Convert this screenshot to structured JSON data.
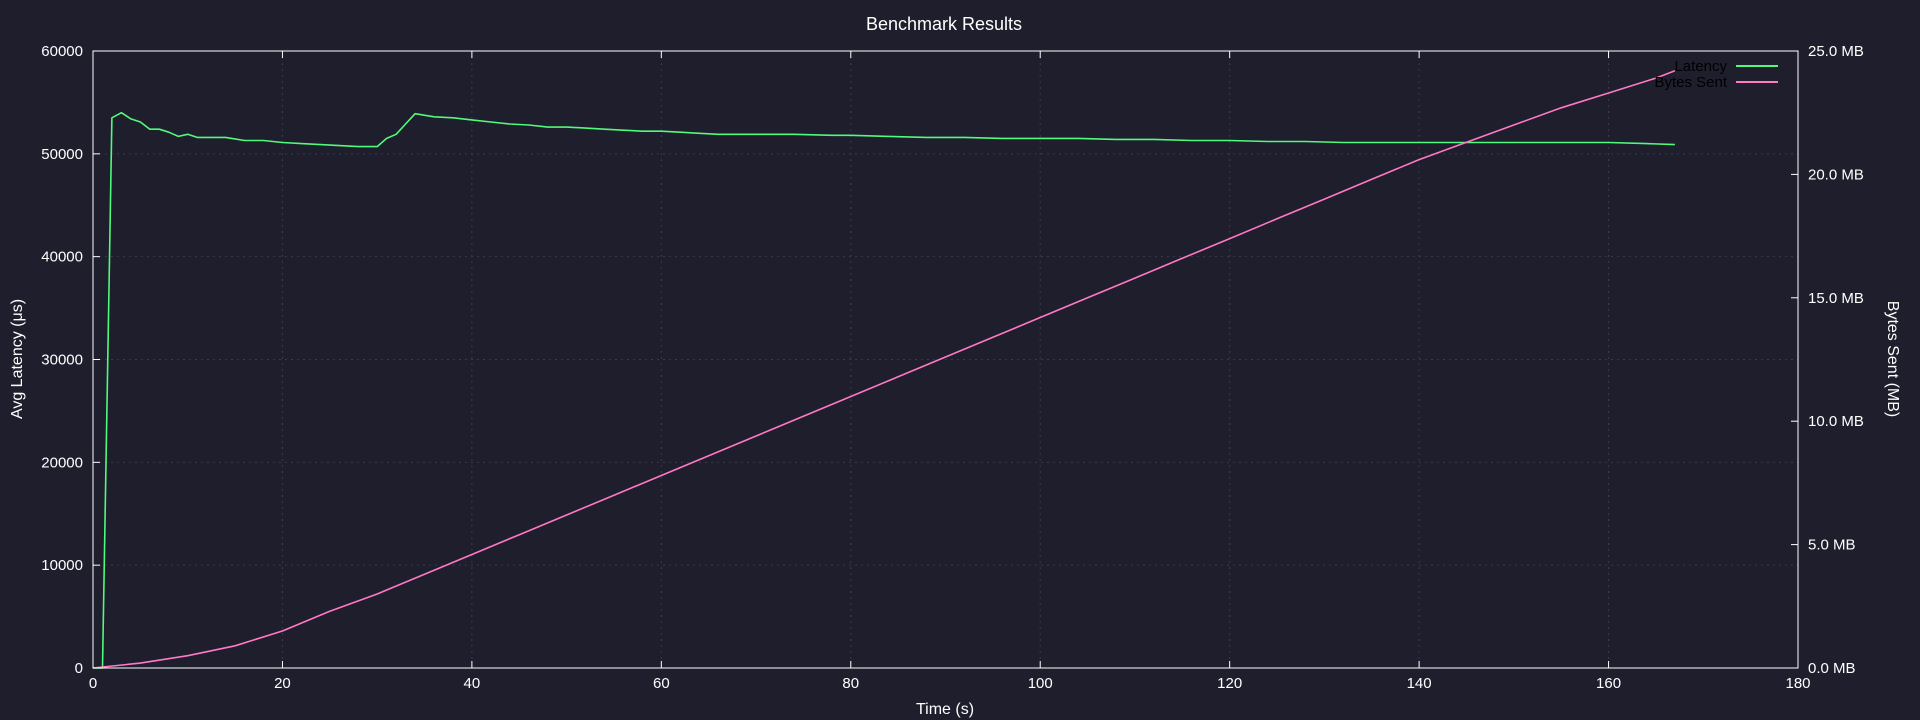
{
  "chart_data": {
    "type": "line",
    "title": "Benchmark Results",
    "xlabel": "Time (s)",
    "ylabel": "Avg Latency (μs)",
    "y2label": "Bytes Sent (MB)",
    "xlim": [
      0,
      180
    ],
    "ylim": [
      0,
      60000
    ],
    "y2lim": [
      0,
      25
    ],
    "x_ticks": [
      0,
      20,
      40,
      60,
      80,
      100,
      120,
      140,
      160,
      180
    ],
    "y_ticks": [
      0,
      10000,
      20000,
      30000,
      40000,
      50000,
      60000
    ],
    "y2_ticks": [
      "0.0 MB",
      "5.0 MB",
      "10.0 MB",
      "15.0 MB",
      "20.0 MB",
      "25.0 MB"
    ],
    "grid": true,
    "legend_position": "top-right",
    "colors": {
      "background": "#1e1e2d",
      "latency": "#50fa7b",
      "bytes": "#ff79c6",
      "axis": "#ffffff",
      "grid": "#3a3a4c"
    },
    "series": [
      {
        "name": "Latency",
        "axis": "left",
        "x": [
          0,
          1,
          2,
          3,
          4,
          5,
          6,
          7,
          8,
          9,
          10,
          11,
          12,
          14,
          16,
          18,
          20,
          22,
          24,
          26,
          28,
          30,
          31,
          32,
          34,
          36,
          38,
          40,
          42,
          44,
          46,
          48,
          50,
          52,
          54,
          56,
          58,
          60,
          62,
          64,
          66,
          68,
          70,
          74,
          78,
          80,
          84,
          88,
          92,
          96,
          100,
          104,
          108,
          112,
          116,
          120,
          124,
          128,
          132,
          136,
          140,
          144,
          148,
          152,
          156,
          160,
          164,
          167
        ],
        "y": [
          0,
          0,
          53500,
          54000,
          53400,
          53100,
          52400,
          52400,
          52100,
          51700,
          51900,
          51600,
          51600,
          51600,
          51300,
          51300,
          51100,
          51000,
          50900,
          50800,
          50700,
          50700,
          51500,
          51900,
          53900,
          53600,
          53500,
          53300,
          53100,
          52900,
          52800,
          52600,
          52600,
          52500,
          52400,
          52300,
          52200,
          52200,
          52100,
          52000,
          51900,
          51900,
          51900,
          51900,
          51800,
          51800,
          51700,
          51600,
          51600,
          51500,
          51500,
          51500,
          51400,
          51400,
          51300,
          51300,
          51200,
          51200,
          51100,
          51100,
          51100,
          51100,
          51100,
          51100,
          51100,
          51100,
          51000,
          50900
        ]
      },
      {
        "name": "Bytes Sent",
        "axis": "right",
        "x": [
          0,
          5,
          10,
          15,
          20,
          25,
          30,
          35,
          40,
          45,
          50,
          55,
          60,
          65,
          70,
          75,
          80,
          85,
          90,
          95,
          100,
          105,
          110,
          115,
          120,
          125,
          130,
          135,
          140,
          145,
          150,
          155,
          160,
          165,
          167
        ],
        "y": [
          0,
          0.2,
          0.5,
          0.9,
          1.5,
          2.3,
          3.0,
          3.8,
          4.6,
          5.4,
          6.2,
          7.0,
          7.8,
          8.6,
          9.4,
          10.2,
          11.0,
          11.8,
          12.6,
          13.4,
          14.2,
          15.0,
          15.8,
          16.6,
          17.4,
          18.2,
          19.0,
          19.8,
          20.6,
          21.3,
          22.0,
          22.7,
          23.3,
          23.9,
          24.2
        ]
      }
    ]
  }
}
